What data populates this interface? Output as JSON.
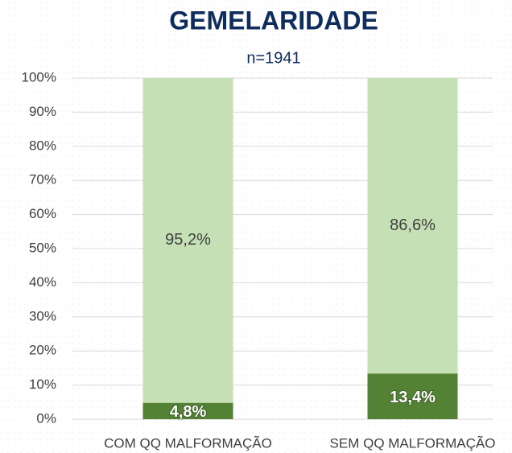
{
  "chart_data": {
    "type": "stacked_bar",
    "title": "GEMELARIDADE",
    "subtitle": "n=1941",
    "categories": [
      "COM QQ MALFORMAÇÃO",
      "SEM QQ MALFORMAÇÃO"
    ],
    "series": [
      {
        "color": "#548235",
        "values": [
          4.8,
          13.4
        ],
        "value_labels": [
          "4,8%",
          "13,4%"
        ]
      },
      {
        "color": "#c5e0b4",
        "values": [
          95.2,
          86.6
        ],
        "value_labels": [
          "95,2%",
          "86,6%"
        ]
      }
    ],
    "ylim": [
      0,
      100
    ],
    "yticks": [
      {
        "value": 0,
        "label": "0%"
      },
      {
        "value": 10,
        "label": "10%"
      },
      {
        "value": 20,
        "label": "20%"
      },
      {
        "value": 30,
        "label": "30%"
      },
      {
        "value": 40,
        "label": "40%"
      },
      {
        "value": 50,
        "label": "50%"
      },
      {
        "value": 60,
        "label": "60%"
      },
      {
        "value": 70,
        "label": "70%"
      },
      {
        "value": 80,
        "label": "80%"
      },
      {
        "value": 90,
        "label": "90%"
      },
      {
        "value": 100,
        "label": "100%"
      }
    ],
    "grid": true
  }
}
